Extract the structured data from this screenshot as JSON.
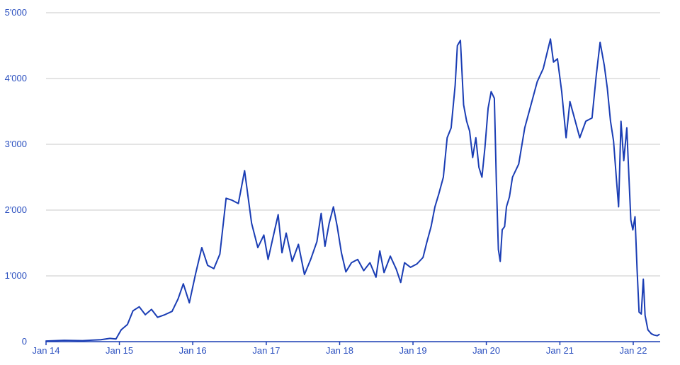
{
  "colors": {
    "series": "#1a3db4",
    "grid": "#c8c8c8",
    "axis": "#1a3db4",
    "text": "#2a4fbf",
    "background": "#ffffff"
  },
  "chart_data": {
    "type": "line",
    "title": "",
    "xlabel": "",
    "ylabel": "",
    "grid": true,
    "legend": "none",
    "xlim": [
      "2014-01-01",
      "2022-05-15"
    ],
    "ylim": [
      0,
      5000
    ],
    "x_ticks": [
      "Jan 14",
      "Jan 15",
      "Jan 16",
      "Jan 17",
      "Jan 18",
      "Jan 19",
      "Jan 20",
      "Jan 21",
      "Jan 22"
    ],
    "y_ticks": [
      "0",
      "1'000",
      "2'000",
      "3'000",
      "4'000",
      "5'000"
    ],
    "series": [
      {
        "points": [
          [
            "2014-01-01",
            10
          ],
          [
            "2014-04-01",
            20
          ],
          [
            "2014-07-01",
            15
          ],
          [
            "2014-10-01",
            30
          ],
          [
            "2014-11-15",
            50
          ],
          [
            "2014-12-15",
            40
          ],
          [
            "2015-01-10",
            180
          ],
          [
            "2015-02-10",
            260
          ],
          [
            "2015-03-10",
            470
          ],
          [
            "2015-04-10",
            530
          ],
          [
            "2015-05-10",
            410
          ],
          [
            "2015-06-10",
            490
          ],
          [
            "2015-07-10",
            370
          ],
          [
            "2015-08-15",
            410
          ],
          [
            "2015-09-20",
            460
          ],
          [
            "2015-10-20",
            650
          ],
          [
            "2015-11-15",
            880
          ],
          [
            "2015-12-15",
            590
          ],
          [
            "2016-01-15",
            1030
          ],
          [
            "2016-02-15",
            1430
          ],
          [
            "2016-03-15",
            1160
          ],
          [
            "2016-04-15",
            1110
          ],
          [
            "2016-05-15",
            1330
          ],
          [
            "2016-06-15",
            2180
          ],
          [
            "2016-07-15",
            2150
          ],
          [
            "2016-08-15",
            2100
          ],
          [
            "2016-09-15",
            2600
          ],
          [
            "2016-10-20",
            1800
          ],
          [
            "2016-11-20",
            1430
          ],
          [
            "2016-12-20",
            1620
          ],
          [
            "2017-01-10",
            1250
          ],
          [
            "2017-02-01",
            1550
          ],
          [
            "2017-03-01",
            1930
          ],
          [
            "2017-03-20",
            1350
          ],
          [
            "2017-04-10",
            1650
          ],
          [
            "2017-05-10",
            1220
          ],
          [
            "2017-06-10",
            1480
          ],
          [
            "2017-07-10",
            1020
          ],
          [
            "2017-08-10",
            1250
          ],
          [
            "2017-09-10",
            1520
          ],
          [
            "2017-10-01",
            1950
          ],
          [
            "2017-10-20",
            1450
          ],
          [
            "2017-11-10",
            1800
          ],
          [
            "2017-12-01",
            2050
          ],
          [
            "2017-12-20",
            1750
          ],
          [
            "2018-01-10",
            1350
          ],
          [
            "2018-02-01",
            1060
          ],
          [
            "2018-03-01",
            1200
          ],
          [
            "2018-04-01",
            1250
          ],
          [
            "2018-05-01",
            1080
          ],
          [
            "2018-06-01",
            1200
          ],
          [
            "2018-07-01",
            980
          ],
          [
            "2018-07-20",
            1380
          ],
          [
            "2018-08-10",
            1050
          ],
          [
            "2018-09-10",
            1300
          ],
          [
            "2018-10-10",
            1100
          ],
          [
            "2018-11-01",
            900
          ],
          [
            "2018-11-20",
            1200
          ],
          [
            "2018-12-20",
            1130
          ],
          [
            "2019-01-20",
            1180
          ],
          [
            "2019-02-20",
            1280
          ],
          [
            "2019-03-10",
            1500
          ],
          [
            "2019-04-01",
            1750
          ],
          [
            "2019-04-20",
            2050
          ],
          [
            "2019-05-10",
            2250
          ],
          [
            "2019-06-01",
            2500
          ],
          [
            "2019-06-20",
            3100
          ],
          [
            "2019-07-10",
            3250
          ],
          [
            "2019-07-30",
            3900
          ],
          [
            "2019-08-10",
            4500
          ],
          [
            "2019-08-25",
            4580
          ],
          [
            "2019-09-10",
            3600
          ],
          [
            "2019-09-25",
            3350
          ],
          [
            "2019-10-10",
            3200
          ],
          [
            "2019-10-25",
            2800
          ],
          [
            "2019-11-10",
            3100
          ],
          [
            "2019-11-25",
            2650
          ],
          [
            "2019-12-10",
            2500
          ],
          [
            "2019-12-25",
            2950
          ],
          [
            "2020-01-10",
            3550
          ],
          [
            "2020-01-25",
            3800
          ],
          [
            "2020-02-10",
            3700
          ],
          [
            "2020-02-20",
            2400
          ],
          [
            "2020-03-01",
            1400
          ],
          [
            "2020-03-10",
            1220
          ],
          [
            "2020-03-20",
            1700
          ],
          [
            "2020-04-01",
            1750
          ],
          [
            "2020-04-10",
            2050
          ],
          [
            "2020-04-25",
            2200
          ],
          [
            "2020-05-10",
            2500
          ],
          [
            "2020-06-10",
            2700
          ],
          [
            "2020-07-10",
            3250
          ],
          [
            "2020-08-10",
            3600
          ],
          [
            "2020-09-10",
            3950
          ],
          [
            "2020-10-10",
            4150
          ],
          [
            "2020-11-15",
            4600
          ],
          [
            "2020-11-30",
            4250
          ],
          [
            "2020-12-20",
            4300
          ],
          [
            "2021-01-10",
            3800
          ],
          [
            "2021-02-01",
            3100
          ],
          [
            "2021-02-20",
            3650
          ],
          [
            "2021-03-10",
            3450
          ],
          [
            "2021-04-10",
            3100
          ],
          [
            "2021-05-10",
            3350
          ],
          [
            "2021-06-10",
            3400
          ],
          [
            "2021-07-01",
            4050
          ],
          [
            "2021-07-20",
            4550
          ],
          [
            "2021-08-10",
            4200
          ],
          [
            "2021-08-25",
            3850
          ],
          [
            "2021-09-10",
            3350
          ],
          [
            "2021-09-25",
            3050
          ],
          [
            "2021-10-10",
            2450
          ],
          [
            "2021-10-20",
            2050
          ],
          [
            "2021-11-01",
            3350
          ],
          [
            "2021-11-15",
            2750
          ],
          [
            "2021-11-30",
            3250
          ],
          [
            "2021-12-10",
            2550
          ],
          [
            "2021-12-20",
            1850
          ],
          [
            "2021-12-30",
            1700
          ],
          [
            "2022-01-10",
            1900
          ],
          [
            "2022-01-20",
            1100
          ],
          [
            "2022-01-30",
            450
          ],
          [
            "2022-02-10",
            420
          ],
          [
            "2022-02-20",
            950
          ],
          [
            "2022-03-01",
            400
          ],
          [
            "2022-03-15",
            180
          ],
          [
            "2022-04-01",
            120
          ],
          [
            "2022-04-15",
            100
          ],
          [
            "2022-05-01",
            90
          ],
          [
            "2022-05-10",
            110
          ]
        ]
      }
    ]
  }
}
